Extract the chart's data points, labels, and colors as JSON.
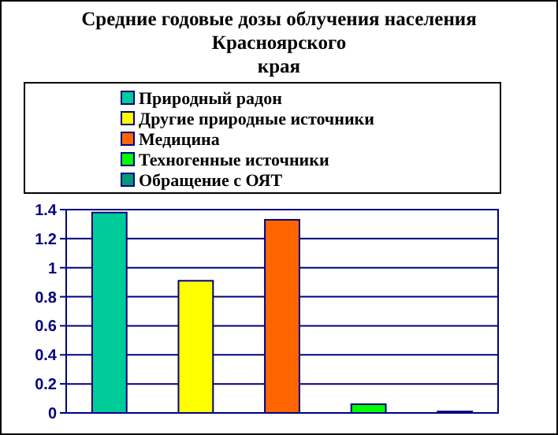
{
  "chart_data": {
    "type": "bar",
    "title": "Средние годовые дозы облучения населения\nКрасноярского\nкрая",
    "categories": [
      null,
      null,
      null,
      null,
      null
    ],
    "series": [
      {
        "name": "Природный радон",
        "color": "#00cc99",
        "values": [
          1.38,
          null,
          null,
          null,
          null
        ]
      },
      {
        "name": "Другие природные источники",
        "color": "#ffff00",
        "values": [
          null,
          0.91,
          null,
          null,
          null
        ]
      },
      {
        "name": "Медицина",
        "color": "#ff6600",
        "values": [
          null,
          null,
          1.33,
          null,
          null
        ]
      },
      {
        "name": "Техногенные источники",
        "color": "#00ff00",
        "values": [
          null,
          null,
          null,
          0.06,
          null
        ]
      },
      {
        "name": "Обращение с ОЯТ",
        "color": "#009977",
        "values": [
          null,
          null,
          null,
          null,
          0.01
        ]
      }
    ],
    "ylim": [
      0,
      1.4
    ],
    "yticks": [
      0,
      {
        "value": 0.2,
        "label": "0.2"
      },
      {
        "value": 0.4,
        "label": "0.4"
      },
      {
        "value": 0.6,
        "label": "0.6"
      },
      {
        "value": 0.8,
        "label": "0.8"
      },
      1,
      {
        "value": 1.2,
        "label": "1.2"
      },
      {
        "value": 1.4,
        "label": "1.4"
      }
    ],
    "grid": "y",
    "legend": "top"
  }
}
